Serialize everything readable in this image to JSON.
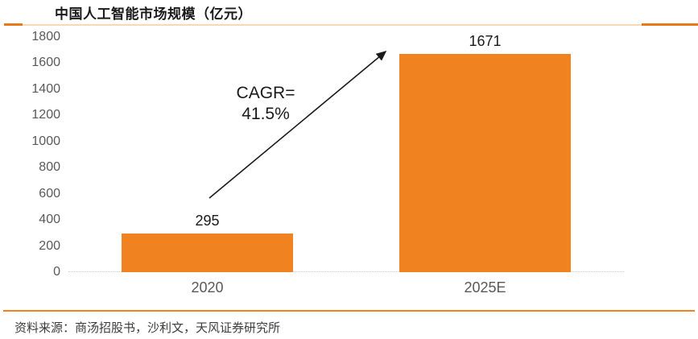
{
  "header": {
    "title": "中国人工智能市场规模（亿元）"
  },
  "chart_data": {
    "type": "bar",
    "title": "中国人工智能市场规模（亿元）",
    "categories": [
      "2020",
      "2025E"
    ],
    "values": [
      295,
      1671
    ],
    "data_labels": [
      "295",
      "1671"
    ],
    "xlabel": "",
    "ylabel": "",
    "ylim": [
      0,
      1800
    ],
    "ytick_step": 200,
    "grid": false,
    "legend_position": "none",
    "bar_color": "#F0821F",
    "annotation": {
      "line1": "CAGR=",
      "line2": "41.5%",
      "arrow": "from top of 2020 bar to top of 2025E bar"
    }
  },
  "footer": {
    "source": "资料来源：商汤招股书，沙利文，天风证券研究所"
  },
  "colors": {
    "bar_orange": "#F0821F",
    "rule_accent_orange": "#E8791B",
    "rule_light_orange": "#F5A95C",
    "footer_rule_orange": "#F0821F",
    "axis_text_gray": "#595959",
    "value_text_black": "#1a1a1a",
    "source_text_gray": "#3c3c3c"
  }
}
